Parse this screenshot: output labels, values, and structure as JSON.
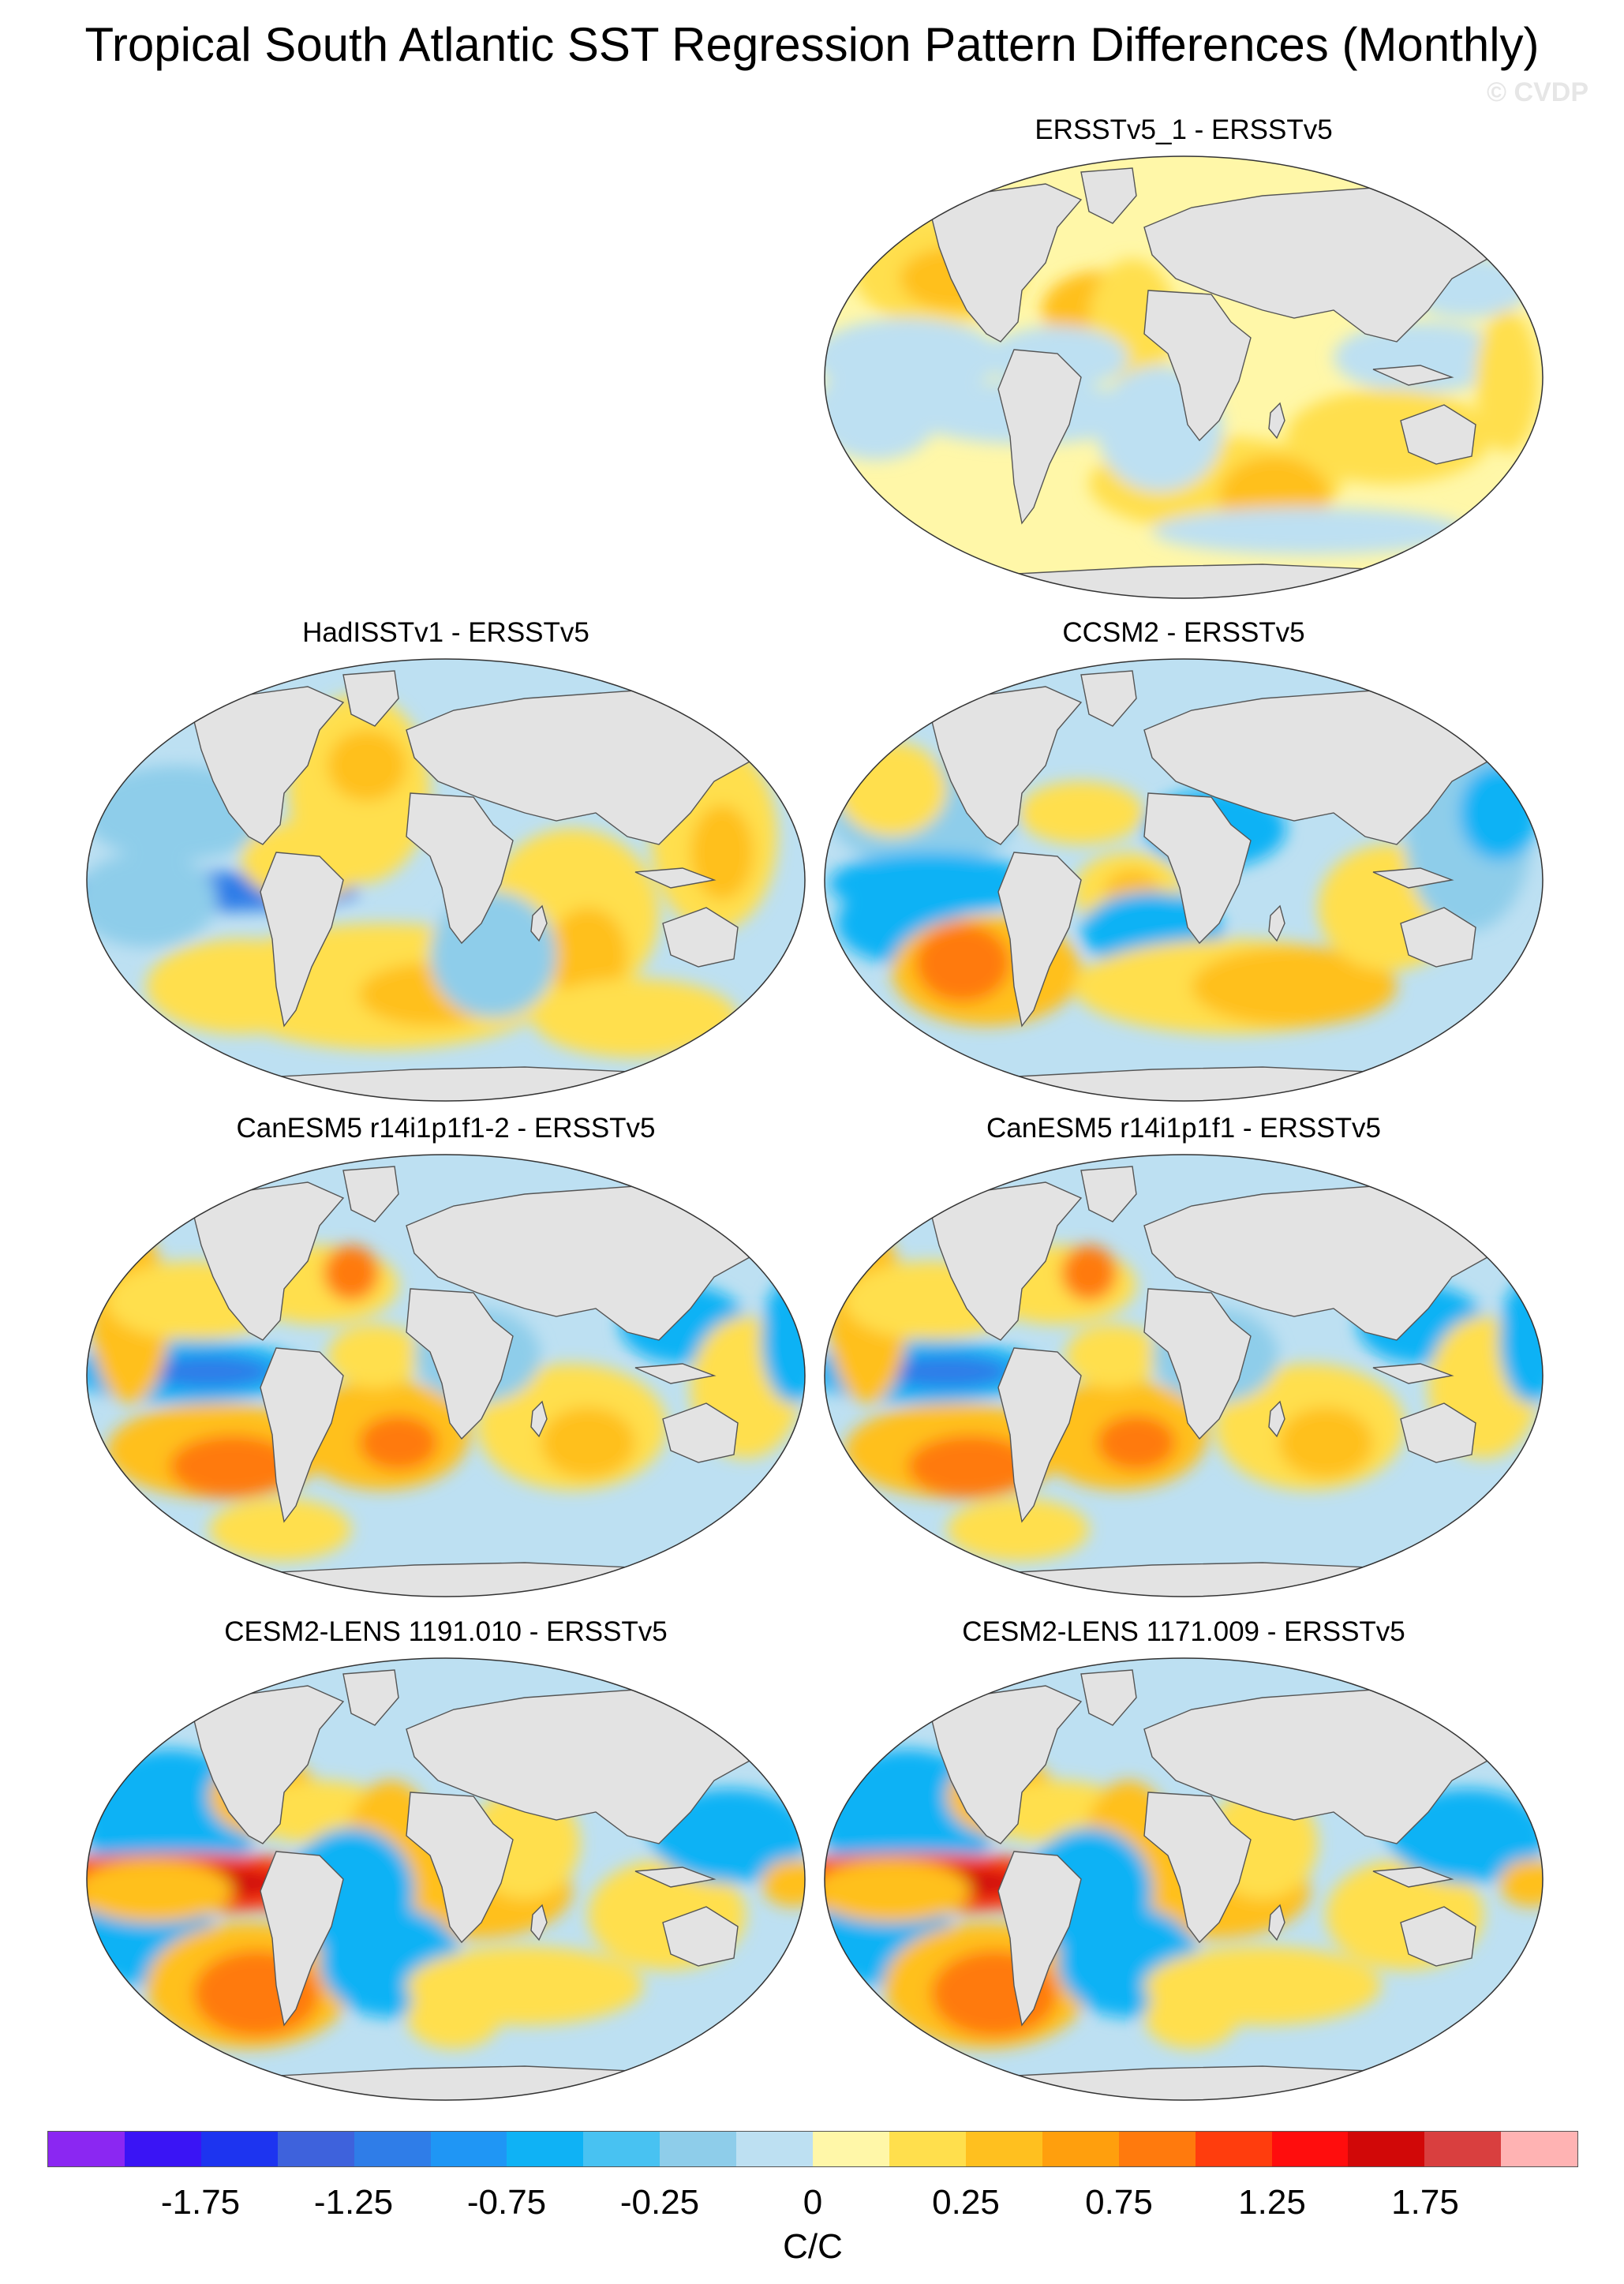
{
  "title": "Tropical South Atlantic SST Regression Pattern Differences (Monthly)",
  "watermark": "© CVDP",
  "panels": [
    {
      "title": "ERSSTv5_1 - ERSSTv5",
      "variant": "obs1"
    },
    {
      "title": "HadISSTv1 - ERSSTv5",
      "variant": "hadisst"
    },
    {
      "title": "CCSM2 - ERSSTv5",
      "variant": "ccsm2"
    },
    {
      "title": "CanESM5 r14i1p1f1-2 - ERSSTv5",
      "variant": "canesm"
    },
    {
      "title": "CanESM5 r14i1p1f1 - ERSSTv5",
      "variant": "canesm"
    },
    {
      "title": "CESM2-LENS 1191.010 - ERSSTv5",
      "variant": "cesm"
    },
    {
      "title": "CESM2-LENS 1171.009 - ERSSTv5",
      "variant": "cesm"
    }
  ],
  "colorbar": {
    "colors": [
      "#8b27f2",
      "#3a14f5",
      "#1d34f0",
      "#3e62dc",
      "#2f7de8",
      "#1f96f5",
      "#0fb2f5",
      "#48c2f2",
      "#8ecdea",
      "#bde0f2",
      "#fff7a8",
      "#ffdf4d",
      "#ffc01f",
      "#ff9f0d",
      "#ff7a0d",
      "#ff3d0d",
      "#ff0d0d",
      "#d10808",
      "#d93f3f",
      "#ffb3b3"
    ],
    "labels": [
      "-1.75",
      "-1.25",
      "-0.75",
      "-0.25",
      "0",
      "0.25",
      "0.75",
      "1.25",
      "1.75"
    ],
    "unit": "C/C"
  }
}
